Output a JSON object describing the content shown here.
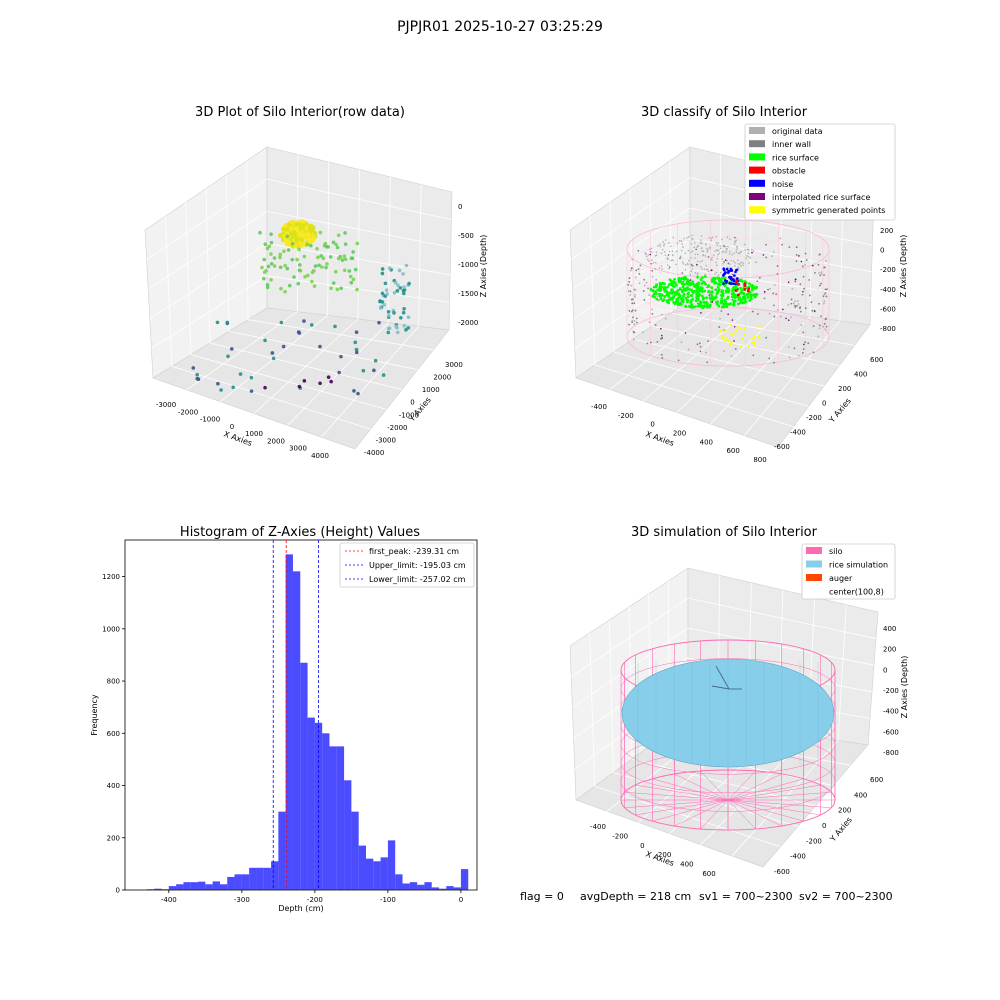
{
  "figure": {
    "suptitle": "PJPJR01 2025-10-27 03:25:29",
    "footer": {
      "flag": "flag = 0",
      "avg_depth": "avgDepth = 218 cm",
      "sv1": "sv1 = 700~2300",
      "sv2": "sv2 = 700~2300"
    }
  },
  "panels": {
    "raw": {
      "title": "3D Plot of Silo Interior(row data)",
      "xlabel": "X Axies",
      "ylabel": "Y Axies",
      "zlabel": "Z Axies (Depth)",
      "xticks": [
        "-3000",
        "-2000",
        "-1000",
        "0",
        "1000",
        "2000",
        "3000",
        "4000"
      ],
      "yticks": [
        "-4000",
        "-3000",
        "-2000",
        "-1000",
        "0",
        "1000",
        "2000",
        "3000"
      ],
      "zticks": [
        "0",
        "-500",
        "-1000",
        "-1500",
        "-2000"
      ],
      "colormap": [
        "#440154",
        "#3b528b",
        "#21918c",
        "#5ec962",
        "#fde725"
      ]
    },
    "classify": {
      "title": "3D classify of Silo Interior",
      "xlabel": "X Axies",
      "ylabel": "Y Axies",
      "zlabel": "Z Axies (Depth)",
      "xticks": [
        "-400",
        "-200",
        "0",
        "200",
        "400",
        "600",
        "800"
      ],
      "yticks": [
        "-600",
        "-400",
        "-200",
        "0",
        "200",
        "400",
        "600"
      ],
      "zticks": [
        "200",
        "0",
        "-200",
        "-400",
        "-600",
        "-800"
      ],
      "legend": [
        {
          "label": "original data",
          "color": "#b0b0b0"
        },
        {
          "label": "inner wall",
          "color": "#808080"
        },
        {
          "label": "rice surface",
          "color": "#00ff00"
        },
        {
          "label": "obstacle",
          "color": "#ff0000"
        },
        {
          "label": "noise",
          "color": "#0000ff"
        },
        {
          "label": "interpolated rice surface",
          "color": "#800080"
        },
        {
          "label": "symmetric generated points",
          "color": "#ffff00"
        }
      ]
    },
    "histogram": {
      "title": "Histogram of Z-Axies (Height) Values",
      "xlabel": "Depth (cm)",
      "ylabel": "Frequency",
      "legend": [
        {
          "label": "first_peak: -239.31 cm",
          "color": "#ff0000"
        },
        {
          "label": "Upper_limit: -195.03 cm",
          "color": "#0000ff"
        },
        {
          "label": "Lower_limit: -257.02 cm",
          "color": "#0000ff"
        }
      ]
    },
    "simulation": {
      "title": "3D simulation of Silo Interior",
      "xlabel": "X Axies",
      "ylabel": "Y Axies",
      "zlabel": "Z Axies (Depth)",
      "xticks": [
        "-400",
        "-200",
        "0",
        "200",
        "400",
        "600"
      ],
      "yticks": [
        "-600",
        "-400",
        "-200",
        "0",
        "200",
        "400",
        "600"
      ],
      "zticks": [
        "400",
        "200",
        "0",
        "-200",
        "-400",
        "-600",
        "-800"
      ],
      "legend": [
        {
          "label": "silo",
          "color": "#ff69b4"
        },
        {
          "label": "rice simulation",
          "color": "#87ceeb"
        },
        {
          "label": "auger",
          "color": "#ff4500"
        },
        {
          "label": "center(100,8)",
          "color": "#ffffff"
        }
      ]
    }
  },
  "chart_data": {
    "type": "bar",
    "title": "Histogram of Z-Axies (Height) Values",
    "xlabel": "Depth (cm)",
    "ylabel": "Frequency",
    "xlim": [
      -460,
      22
    ],
    "ylim": [
      0,
      1340
    ],
    "xticks": [
      -400,
      -300,
      -200,
      -100,
      0
    ],
    "yticks": [
      0,
      200,
      400,
      600,
      800,
      1000,
      1200
    ],
    "bar_color": "#0000ff",
    "bin_width": 10,
    "bins_left": [
      -430,
      -420,
      -410,
      -400,
      -390,
      -380,
      -370,
      -360,
      -350,
      -340,
      -330,
      -320,
      -310,
      -300,
      -290,
      -280,
      -270,
      -260,
      -250,
      -240,
      -230,
      -220,
      -210,
      -200,
      -190,
      -180,
      -170,
      -160,
      -150,
      -140,
      -130,
      -120,
      -110,
      -100,
      -90,
      -80,
      -70,
      -60,
      -50,
      -40,
      -30,
      -20,
      -10,
      0
    ],
    "values": [
      3,
      5,
      3,
      15,
      22,
      30,
      30,
      32,
      22,
      33,
      22,
      50,
      60,
      60,
      85,
      85,
      85,
      110,
      300,
      1285,
      1220,
      870,
      660,
      640,
      600,
      550,
      550,
      420,
      300,
      170,
      120,
      110,
      125,
      190,
      60,
      25,
      30,
      20,
      30,
      10,
      5,
      15,
      10,
      80
    ],
    "vlines": [
      {
        "x": -239.31,
        "color": "#ff0000",
        "label": "first_peak: -239.31 cm"
      },
      {
        "x": -195.03,
        "color": "#0000ff",
        "label": "Upper_limit: -195.03 cm"
      },
      {
        "x": -257.02,
        "color": "#0000ff",
        "label": "Lower_limit: -257.02 cm"
      }
    ],
    "legend_position": "top-right",
    "grid": false
  }
}
